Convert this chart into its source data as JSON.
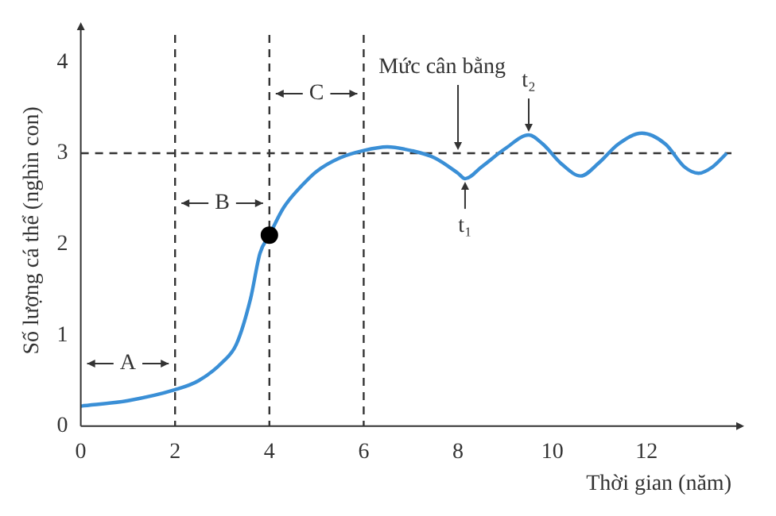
{
  "chart_data": {
    "type": "line",
    "xlabel": "Thời gian (năm)",
    "ylabel": "Số lượng cá thể (nghìn con)",
    "xlim": [
      0,
      13.8
    ],
    "ylim": [
      0,
      4.3
    ],
    "xticks": [
      0,
      2,
      4,
      6,
      8,
      10,
      12
    ],
    "yticks": [
      0,
      1,
      2,
      3,
      4
    ],
    "series": [
      {
        "type": "line",
        "color": "#3a8fd6",
        "x": [
          0,
          1,
          2,
          2.5,
          3,
          3.3,
          3.6,
          3.8,
          4,
          4.3,
          4.7,
          5,
          5.5,
          6,
          6.5,
          7,
          7.5,
          8,
          8.15,
          8.5,
          9,
          9.5,
          9.8,
          10.2,
          10.6,
          11,
          11.4,
          11.9,
          12.4,
          12.8,
          13.1,
          13.4,
          13.7
        ],
        "values": [
          0.22,
          0.28,
          0.4,
          0.5,
          0.7,
          0.9,
          1.4,
          1.9,
          2.1,
          2.4,
          2.65,
          2.8,
          2.95,
          3.03,
          3.07,
          3.03,
          2.95,
          2.78,
          2.72,
          2.85,
          3.05,
          3.2,
          3.1,
          2.88,
          2.75,
          2.9,
          3.1,
          3.22,
          3.1,
          2.85,
          2.78,
          2.85,
          3.0
        ]
      },
      {
        "type": "scatter",
        "color": "#000000",
        "marker": "circle",
        "x": [
          4
        ],
        "values": [
          2.1
        ]
      }
    ],
    "ref_lines": [
      {
        "axis": "x",
        "value": 2,
        "line_style": "dashed",
        "color": "#333333"
      },
      {
        "axis": "x",
        "value": 4,
        "line_style": "dashed",
        "color": "#333333"
      },
      {
        "axis": "x",
        "value": 6,
        "line_style": "dashed",
        "color": "#333333"
      },
      {
        "axis": "y",
        "value": 3,
        "line_style": "dashed",
        "color": "#333333"
      }
    ],
    "annotations": [
      "A",
      "B",
      "C",
      {
        "text": "Mức cân bằng",
        "x": 8,
        "y": 3
      },
      {
        "text": "t₁",
        "x": 8.15,
        "y": 2.72
      },
      {
        "text": "t₂",
        "x": 9.5,
        "y": 3.2
      }
    ]
  }
}
